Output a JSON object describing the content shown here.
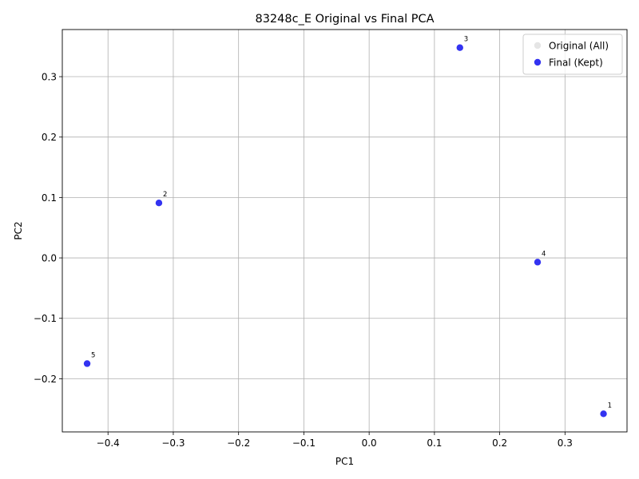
{
  "chart_data": {
    "type": "scatter",
    "title": "83248c_E Original vs Final PCA",
    "xlabel": "PC1",
    "ylabel": "PC2",
    "xlim": [
      -0.47,
      0.395
    ],
    "ylim": [
      -0.288,
      0.378
    ],
    "xticks": [
      -0.4,
      -0.3,
      -0.2,
      -0.1,
      0.0,
      0.1,
      0.2,
      0.3
    ],
    "xtick_labels": [
      "−0.4",
      "−0.3",
      "−0.2",
      "−0.1",
      "0.0",
      "0.1",
      "0.2",
      "0.3"
    ],
    "yticks": [
      -0.2,
      -0.1,
      0.0,
      0.1,
      0.2,
      0.3
    ],
    "ytick_labels": [
      "−0.2",
      "−0.1",
      "0.0",
      "0.1",
      "0.2",
      "0.3"
    ],
    "grid": true,
    "legend_position": "top-right",
    "series": [
      {
        "name": "Original (All)",
        "color": "#d3d3d3",
        "points": []
      },
      {
        "name": "Final (Kept)",
        "color": "#0000ee",
        "points": [
          {
            "label": "1",
            "x": 0.359,
            "y": -0.258
          },
          {
            "label": "2",
            "x": -0.322,
            "y": 0.091
          },
          {
            "label": "3",
            "x": 0.139,
            "y": 0.348
          },
          {
            "label": "4",
            "x": 0.258,
            "y": -0.007
          },
          {
            "label": "5",
            "x": -0.432,
            "y": -0.175
          }
        ]
      }
    ]
  }
}
